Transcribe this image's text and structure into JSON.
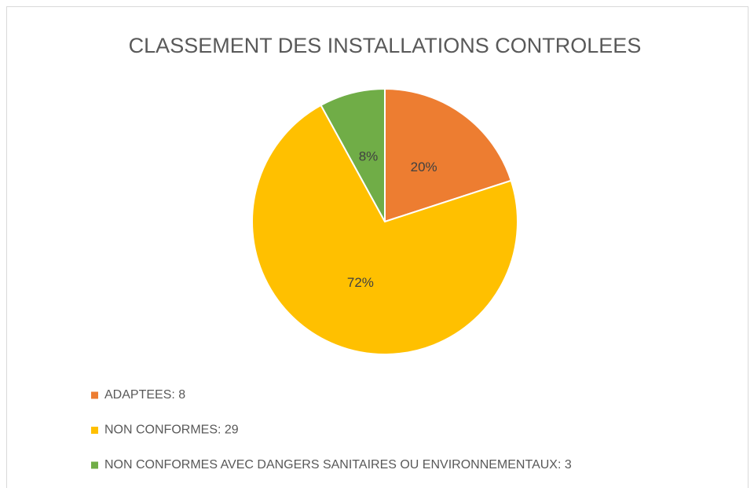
{
  "chart_data": {
    "type": "pie",
    "title": "CLASSEMENT DES INSTALLATIONS CONTROLEES",
    "categories": [
      "ADAPTEES: 8",
      "NON CONFORMES: 29",
      "NON CONFORMES AVEC DANGERS SANITAIRES OU ENVIRONNEMENTAUX: 3"
    ],
    "values": [
      20,
      72,
      8
    ],
    "value_labels": [
      "20%",
      "72%",
      "8%"
    ],
    "colors": [
      "#ED7D31",
      "#FFC000",
      "#70AD47"
    ],
    "legend": "bottom-left"
  }
}
